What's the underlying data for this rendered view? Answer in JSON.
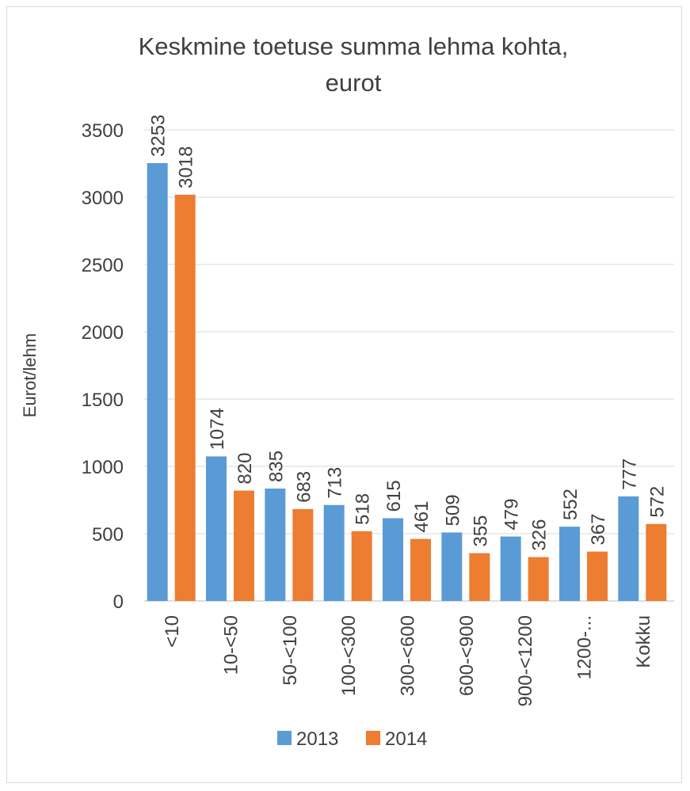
{
  "chart_data": {
    "type": "bar",
    "title_lines": [
      "Keskmine toetuse summa lehma kohta,",
      "eurot"
    ],
    "ylabel": "Eurot/lehm",
    "xlabel": "",
    "ylim": [
      0,
      3500
    ],
    "yticks": [
      0,
      500,
      1000,
      1500,
      2000,
      2500,
      3000,
      3500
    ],
    "grid": true,
    "legend_position": "bottom",
    "categories": [
      "<10",
      "10-<50",
      "50-<100",
      "100-<300",
      "300-<600",
      "600-<900",
      "900-<1200",
      "1200-...",
      "Kokku"
    ],
    "series": [
      {
        "name": "2013",
        "color": "#5b9bd5",
        "values": [
          3253,
          1074,
          835,
          713,
          615,
          509,
          479,
          552,
          777
        ]
      },
      {
        "name": "2014",
        "color": "#ed7d31",
        "values": [
          3018,
          820,
          683,
          518,
          461,
          355,
          326,
          367,
          572
        ]
      }
    ]
  }
}
